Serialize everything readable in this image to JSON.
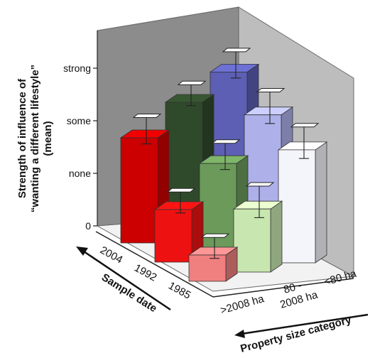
{
  "chart_data": {
    "type": "bar",
    "style": "3d-grouped",
    "ylabel_lines": [
      "Strength of influence of",
      "“wanting a different lifestyle”",
      "(mean)"
    ],
    "y_ticks": [
      {
        "value": 0,
        "label": "0"
      },
      {
        "value": 1,
        "label": "none"
      },
      {
        "value": 2,
        "label": "some"
      },
      {
        "value": 3,
        "label": "strong"
      }
    ],
    "ylim": [
      0,
      3.3
    ],
    "sample_date_axis": {
      "title": "Sample date",
      "categories": [
        "2004",
        "1992",
        "1985"
      ]
    },
    "property_size_axis": {
      "title": "Property size category",
      "categories": [
        ">2008 ha",
        "80 - 2008 ha",
        "<80 ha"
      ],
      "category_lines": [
        [
          ">2008 ha"
        ],
        [
          "80 -",
          "2008 ha"
        ],
        [
          "<80 ha"
        ]
      ]
    },
    "series": [
      {
        "name": ">2008 ha",
        "values": [
          2.0,
          1.0,
          0.5
        ],
        "errors": [
          0.25,
          0.2,
          0.2
        ],
        "colors": [
          "#cc0000",
          "#ee1111",
          "#f08080"
        ]
      },
      {
        "name": "80 - 2008 ha",
        "values": [
          2.5,
          1.7,
          1.2
        ],
        "errors": [
          0.2,
          0.25,
          0.3
        ],
        "colors": [
          "#2f4a2a",
          "#6b9a5a",
          "#c8e6b0"
        ]
      },
      {
        "name": "<80 ha",
        "values": [
          2.9,
          2.45,
          2.15
        ],
        "errors": [
          0.25,
          0.3,
          0.3
        ],
        "colors": [
          "#5c5fb4",
          "#aeb0ea",
          "#f4f4fb"
        ]
      }
    ]
  }
}
